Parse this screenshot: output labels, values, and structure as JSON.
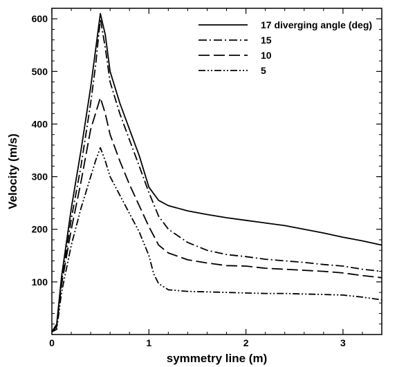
{
  "chart_data": {
    "type": "line",
    "title": "",
    "xlabel": "symmetry line (m)",
    "ylabel": "Velocity (m/s)",
    "xlim": [
      0,
      3.4
    ],
    "ylim": [
      0,
      620
    ],
    "x_ticks": [
      0,
      1,
      2,
      3
    ],
    "y_ticks": [
      100,
      200,
      300,
      400,
      500,
      600
    ],
    "x_tick_labels": [
      "0",
      "1",
      "2",
      "3"
    ],
    "y_tick_labels": [
      "100",
      "200",
      "300",
      "400",
      "500",
      "600"
    ],
    "grid": false,
    "legend_position": "top-right",
    "series": [
      {
        "name": "17 diverging angle (deg)",
        "dash": "solid",
        "x": [
          0,
          0.05,
          0.1,
          0.2,
          0.3,
          0.4,
          0.45,
          0.5,
          0.55,
          0.6,
          0.7,
          0.8,
          0.9,
          1.0,
          1.1,
          1.2,
          1.4,
          1.6,
          1.8,
          2.0,
          2.2,
          2.4,
          2.6,
          2.8,
          3.0,
          3.2,
          3.4
        ],
        "y": [
          5,
          20,
          110,
          240,
          350,
          470,
          540,
          610,
          570,
          500,
          440,
          390,
          340,
          280,
          255,
          245,
          235,
          228,
          222,
          217,
          212,
          207,
          200,
          193,
          185,
          178,
          170
        ]
      },
      {
        "name": "15",
        "dash": "dash-dot",
        "x": [
          0,
          0.05,
          0.1,
          0.2,
          0.3,
          0.4,
          0.45,
          0.5,
          0.55,
          0.6,
          0.7,
          0.8,
          0.9,
          1.0,
          1.1,
          1.2,
          1.4,
          1.6,
          1.8,
          2.0,
          2.2,
          2.4,
          2.6,
          2.8,
          3.0,
          3.2,
          3.4
        ],
        "y": [
          5,
          18,
          100,
          220,
          320,
          440,
          510,
          600,
          545,
          480,
          420,
          370,
          320,
          270,
          225,
          200,
          175,
          160,
          152,
          148,
          143,
          140,
          137,
          133,
          130,
          124,
          120
        ]
      },
      {
        "name": "10",
        "dash": "long-dash",
        "x": [
          0,
          0.05,
          0.1,
          0.2,
          0.3,
          0.4,
          0.45,
          0.5,
          0.55,
          0.6,
          0.7,
          0.8,
          0.9,
          1.0,
          1.1,
          1.2,
          1.4,
          1.6,
          1.8,
          2.0,
          2.2,
          2.4,
          2.6,
          2.8,
          3.0,
          3.2,
          3.4
        ],
        "y": [
          5,
          15,
          95,
          200,
          290,
          390,
          420,
          450,
          420,
          380,
          330,
          285,
          245,
          205,
          170,
          155,
          142,
          136,
          131,
          130,
          126,
          124,
          122,
          120,
          117,
          112,
          108
        ]
      },
      {
        "name": "5",
        "dash": "dash-dot-dot",
        "x": [
          0,
          0.05,
          0.1,
          0.2,
          0.3,
          0.4,
          0.45,
          0.5,
          0.55,
          0.6,
          0.7,
          0.8,
          0.9,
          1.0,
          1.05,
          1.1,
          1.2,
          1.4,
          1.6,
          1.8,
          2.0,
          2.2,
          2.4,
          2.6,
          2.8,
          3.0,
          3.2,
          3.4
        ],
        "y": [
          5,
          10,
          80,
          170,
          240,
          300,
          330,
          355,
          330,
          300,
          265,
          230,
          195,
          150,
          115,
          97,
          85,
          82,
          81,
          80,
          79,
          78,
          78,
          77,
          76,
          75,
          71,
          66
        ]
      }
    ]
  }
}
